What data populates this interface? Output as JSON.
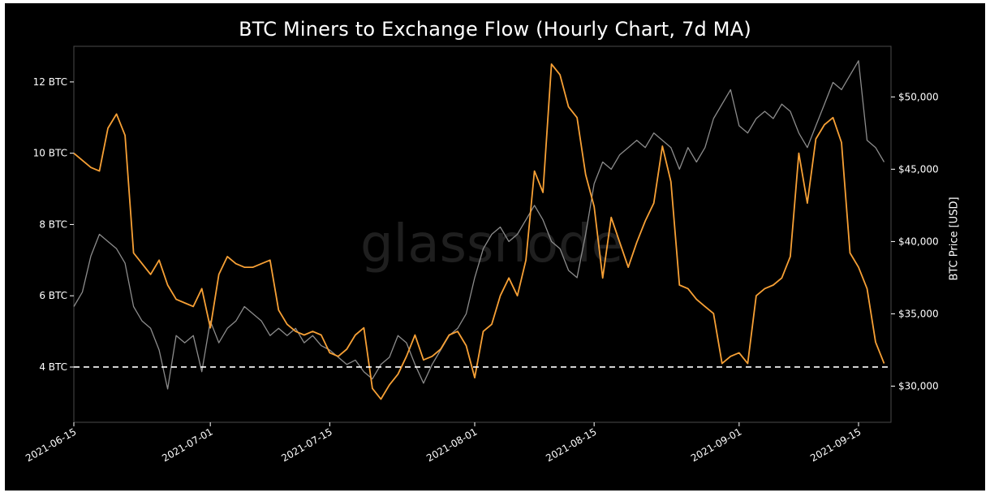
{
  "title": "BTC Miners to Exchange Flow (Hourly Chart, 7d MA)",
  "watermark": "glassnode",
  "right_axis_label": "BTC Price [USD]",
  "colors": {
    "background": "#000000",
    "flow": "#f7a035",
    "price": "#8c8c8c",
    "reference": "#ffffff",
    "text": "#ffffff"
  },
  "chart_data": {
    "type": "line",
    "x_type": "date",
    "xlim": [
      "2021-06-15",
      "2021-09-16"
    ],
    "x_ticks": [
      "2021-06-15",
      "2021-07-01",
      "2021-07-15",
      "2021-08-01",
      "2021-08-15",
      "2021-09-01",
      "2021-09-15"
    ],
    "y_left": {
      "ticks": [
        4,
        6,
        8,
        10,
        12
      ],
      "tick_labels": [
        "4 BTC",
        "6 BTC",
        "8 BTC",
        "10 BTC",
        "12 BTC"
      ],
      "ylim": [
        2.45,
        13.0
      ]
    },
    "y_right": {
      "label": "BTC Price [USD]",
      "ticks": [
        30000,
        35000,
        40000,
        45000,
        50000
      ],
      "tick_labels": [
        "$30,000",
        "$35,000",
        "$40,000",
        "$45,000",
        "$50,000"
      ],
      "ylim": [
        27500,
        53500
      ]
    },
    "reference_line": {
      "axis": "left",
      "value": 4.0,
      "style": "dashed"
    },
    "series": [
      {
        "axis": "left",
        "color": "#f7a035",
        "points": [
          [
            "2021-06-15",
            10.0
          ],
          [
            "2021-06-16",
            9.8
          ],
          [
            "2021-06-17",
            9.6
          ],
          [
            "2021-06-18",
            9.5
          ],
          [
            "2021-06-19",
            10.7
          ],
          [
            "2021-06-20",
            11.1
          ],
          [
            "2021-06-21",
            10.5
          ],
          [
            "2021-06-22",
            7.2
          ],
          [
            "2021-06-23",
            6.9
          ],
          [
            "2021-06-24",
            6.6
          ],
          [
            "2021-06-25",
            7.0
          ],
          [
            "2021-06-26",
            6.3
          ],
          [
            "2021-06-27",
            5.9
          ],
          [
            "2021-06-28",
            5.8
          ],
          [
            "2021-06-29",
            5.7
          ],
          [
            "2021-06-30",
            6.2
          ],
          [
            "2021-07-01",
            5.1
          ],
          [
            "2021-07-02",
            6.6
          ],
          [
            "2021-07-03",
            7.1
          ],
          [
            "2021-07-04",
            6.9
          ],
          [
            "2021-07-05",
            6.8
          ],
          [
            "2021-07-06",
            6.8
          ],
          [
            "2021-07-07",
            6.9
          ],
          [
            "2021-07-08",
            7.0
          ],
          [
            "2021-07-09",
            5.6
          ],
          [
            "2021-07-10",
            5.2
          ],
          [
            "2021-07-11",
            5.0
          ],
          [
            "2021-07-12",
            4.9
          ],
          [
            "2021-07-13",
            5.0
          ],
          [
            "2021-07-14",
            4.9
          ],
          [
            "2021-07-15",
            4.4
          ],
          [
            "2021-07-16",
            4.3
          ],
          [
            "2021-07-17",
            4.5
          ],
          [
            "2021-07-18",
            4.9
          ],
          [
            "2021-07-19",
            5.1
          ],
          [
            "2021-07-20",
            3.4
          ],
          [
            "2021-07-21",
            3.1
          ],
          [
            "2021-07-22",
            3.5
          ],
          [
            "2021-07-23",
            3.8
          ],
          [
            "2021-07-24",
            4.3
          ],
          [
            "2021-07-25",
            4.9
          ],
          [
            "2021-07-26",
            4.2
          ],
          [
            "2021-07-27",
            4.3
          ],
          [
            "2021-07-28",
            4.5
          ],
          [
            "2021-07-29",
            4.9
          ],
          [
            "2021-07-30",
            5.0
          ],
          [
            "2021-07-31",
            4.6
          ],
          [
            "2021-08-01",
            3.7
          ],
          [
            "2021-08-02",
            5.0
          ],
          [
            "2021-08-03",
            5.2
          ],
          [
            "2021-08-04",
            6.0
          ],
          [
            "2021-08-05",
            6.5
          ],
          [
            "2021-08-06",
            6.0
          ],
          [
            "2021-08-07",
            7.0
          ],
          [
            "2021-08-08",
            9.5
          ],
          [
            "2021-08-09",
            8.9
          ],
          [
            "2021-08-10",
            12.5
          ],
          [
            "2021-08-11",
            12.2
          ],
          [
            "2021-08-12",
            11.3
          ],
          [
            "2021-08-13",
            11.0
          ],
          [
            "2021-08-14",
            9.4
          ],
          [
            "2021-08-15",
            8.5
          ],
          [
            "2021-08-16",
            6.5
          ],
          [
            "2021-08-17",
            8.2
          ],
          [
            "2021-08-18",
            7.5
          ],
          [
            "2021-08-19",
            6.8
          ],
          [
            "2021-08-20",
            7.5
          ],
          [
            "2021-08-21",
            8.1
          ],
          [
            "2021-08-22",
            8.6
          ],
          [
            "2021-08-23",
            10.2
          ],
          [
            "2021-08-24",
            9.2
          ],
          [
            "2021-08-25",
            6.3
          ],
          [
            "2021-08-26",
            6.2
          ],
          [
            "2021-08-27",
            5.9
          ],
          [
            "2021-08-28",
            5.7
          ],
          [
            "2021-08-29",
            5.5
          ],
          [
            "2021-08-30",
            4.1
          ],
          [
            "2021-08-31",
            4.3
          ],
          [
            "2021-09-01",
            4.4
          ],
          [
            "2021-09-02",
            4.1
          ],
          [
            "2021-09-03",
            6.0
          ],
          [
            "2021-09-04",
            6.2
          ],
          [
            "2021-09-05",
            6.3
          ],
          [
            "2021-09-06",
            6.5
          ],
          [
            "2021-09-07",
            7.1
          ],
          [
            "2021-09-08",
            10.0
          ],
          [
            "2021-09-09",
            8.6
          ],
          [
            "2021-09-10",
            10.4
          ],
          [
            "2021-09-11",
            10.8
          ],
          [
            "2021-09-12",
            11.0
          ],
          [
            "2021-09-13",
            10.3
          ],
          [
            "2021-09-14",
            7.2
          ],
          [
            "2021-09-15",
            6.8
          ],
          [
            "2021-09-16",
            6.2
          ],
          [
            "2021-09-17",
            4.7
          ],
          [
            "2021-09-18",
            4.1
          ]
        ]
      },
      {
        "axis": "right",
        "color": "#8c8c8c",
        "points": [
          [
            "2021-06-15",
            35500
          ],
          [
            "2021-06-16",
            36500
          ],
          [
            "2021-06-17",
            39000
          ],
          [
            "2021-06-18",
            40500
          ],
          [
            "2021-06-19",
            40000
          ],
          [
            "2021-06-20",
            39500
          ],
          [
            "2021-06-21",
            38500
          ],
          [
            "2021-06-22",
            35500
          ],
          [
            "2021-06-23",
            34500
          ],
          [
            "2021-06-24",
            34000
          ],
          [
            "2021-06-25",
            32500
          ],
          [
            "2021-06-26",
            29800
          ],
          [
            "2021-06-27",
            33500
          ],
          [
            "2021-06-28",
            33000
          ],
          [
            "2021-06-29",
            33500
          ],
          [
            "2021-06-30",
            31000
          ],
          [
            "2021-07-01",
            34500
          ],
          [
            "2021-07-02",
            33000
          ],
          [
            "2021-07-03",
            34000
          ],
          [
            "2021-07-04",
            34500
          ],
          [
            "2021-07-05",
            35500
          ],
          [
            "2021-07-06",
            35000
          ],
          [
            "2021-07-07",
            34500
          ],
          [
            "2021-07-08",
            33500
          ],
          [
            "2021-07-09",
            34000
          ],
          [
            "2021-07-10",
            33500
          ],
          [
            "2021-07-11",
            34000
          ],
          [
            "2021-07-12",
            33000
          ],
          [
            "2021-07-13",
            33500
          ],
          [
            "2021-07-14",
            32800
          ],
          [
            "2021-07-15",
            32500
          ],
          [
            "2021-07-16",
            32000
          ],
          [
            "2021-07-17",
            31500
          ],
          [
            "2021-07-18",
            31800
          ],
          [
            "2021-07-19",
            31000
          ],
          [
            "2021-07-20",
            30500
          ],
          [
            "2021-07-21",
            31500
          ],
          [
            "2021-07-22",
            32000
          ],
          [
            "2021-07-23",
            33500
          ],
          [
            "2021-07-24",
            33000
          ],
          [
            "2021-07-25",
            31500
          ],
          [
            "2021-07-26",
            30200
          ],
          [
            "2021-07-27",
            31500
          ],
          [
            "2021-07-28",
            32500
          ],
          [
            "2021-07-29",
            33500
          ],
          [
            "2021-07-30",
            34000
          ],
          [
            "2021-07-31",
            35000
          ],
          [
            "2021-08-01",
            37500
          ],
          [
            "2021-08-02",
            39500
          ],
          [
            "2021-08-03",
            40500
          ],
          [
            "2021-08-04",
            41000
          ],
          [
            "2021-08-05",
            40000
          ],
          [
            "2021-08-06",
            40500
          ],
          [
            "2021-08-07",
            41500
          ],
          [
            "2021-08-08",
            42500
          ],
          [
            "2021-08-09",
            41500
          ],
          [
            "2021-08-10",
            40000
          ],
          [
            "2021-08-11",
            39500
          ],
          [
            "2021-08-12",
            38000
          ],
          [
            "2021-08-13",
            37500
          ],
          [
            "2021-08-14",
            40500
          ],
          [
            "2021-08-15",
            44000
          ],
          [
            "2021-08-16",
            45500
          ],
          [
            "2021-08-17",
            45000
          ],
          [
            "2021-08-18",
            46000
          ],
          [
            "2021-08-19",
            46500
          ],
          [
            "2021-08-20",
            47000
          ],
          [
            "2021-08-21",
            46500
          ],
          [
            "2021-08-22",
            47500
          ],
          [
            "2021-08-23",
            47000
          ],
          [
            "2021-08-24",
            46500
          ],
          [
            "2021-08-25",
            45000
          ],
          [
            "2021-08-26",
            46500
          ],
          [
            "2021-08-27",
            45500
          ],
          [
            "2021-08-28",
            46500
          ],
          [
            "2021-08-29",
            48500
          ],
          [
            "2021-08-30",
            49500
          ],
          [
            "2021-08-31",
            50500
          ],
          [
            "2021-09-01",
            48000
          ],
          [
            "2021-09-02",
            47500
          ],
          [
            "2021-09-03",
            48500
          ],
          [
            "2021-09-04",
            49000
          ],
          [
            "2021-09-05",
            48500
          ],
          [
            "2021-09-06",
            49500
          ],
          [
            "2021-09-07",
            49000
          ],
          [
            "2021-09-08",
            47500
          ],
          [
            "2021-09-09",
            46500
          ],
          [
            "2021-09-10",
            48000
          ],
          [
            "2021-09-11",
            49500
          ],
          [
            "2021-09-12",
            51000
          ],
          [
            "2021-09-13",
            50500
          ],
          [
            "2021-09-14",
            51500
          ],
          [
            "2021-09-15",
            52500
          ],
          [
            "2021-09-16",
            47000
          ],
          [
            "2021-09-17",
            46500
          ],
          [
            "2021-09-18",
            45500
          ]
        ]
      }
    ]
  }
}
